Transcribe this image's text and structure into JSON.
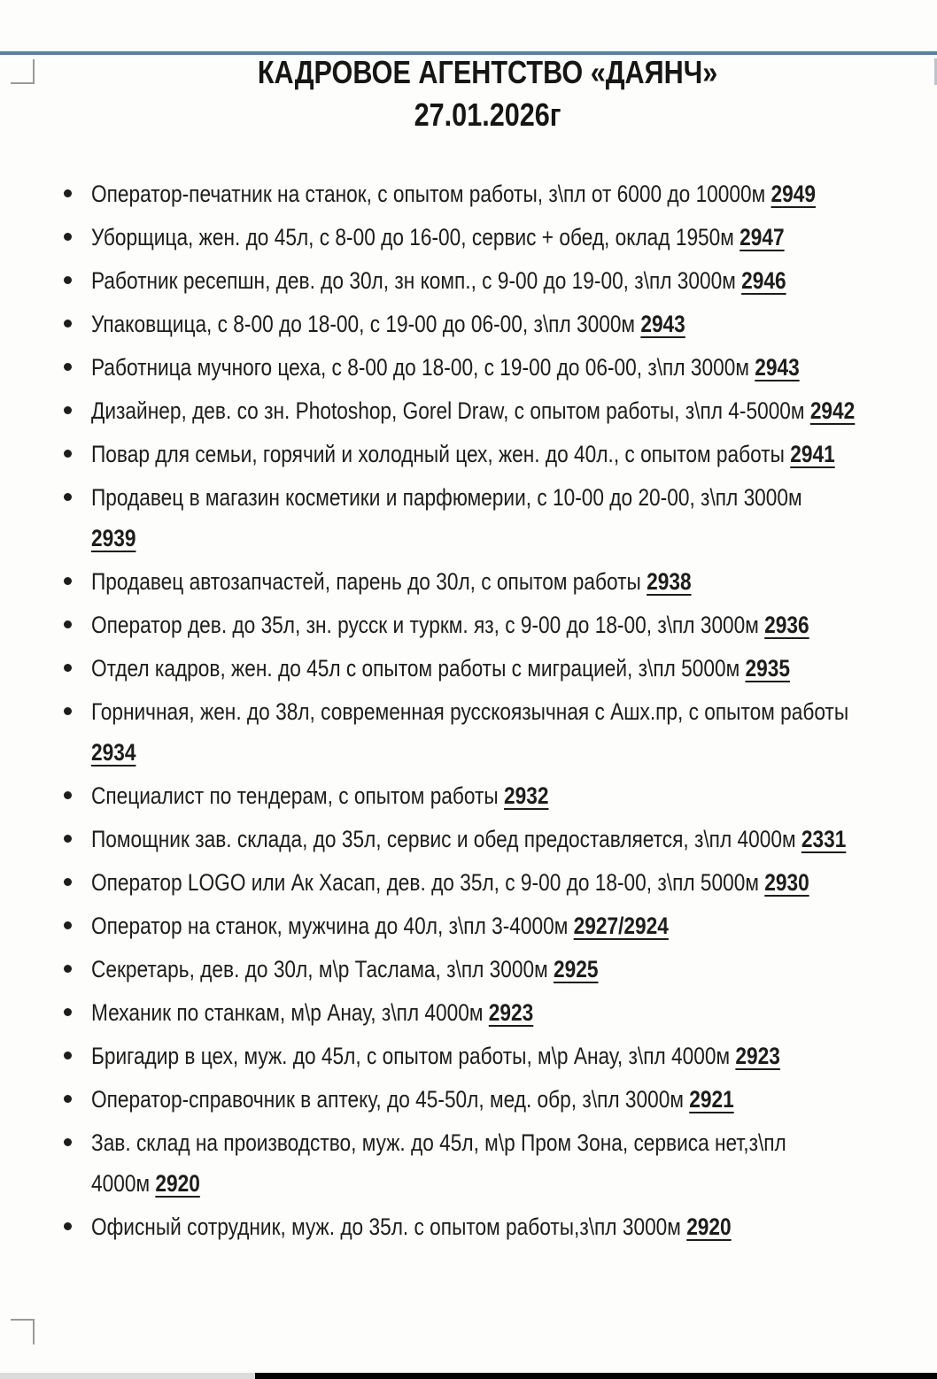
{
  "page": {
    "title": "КАДРОВОЕ АГЕНТСТВО «ДАЯНЧ»",
    "date": "27.01.2026г"
  },
  "colors": {
    "top_bar": "#5181ae",
    "bottom_bar_left": "#dcdcdc",
    "bottom_bar_right": "#050505",
    "text": "#1d1d1d"
  },
  "list": {
    "items": [
      {
        "lines": [
          {
            "text": "Оператор-печатник на станок, с опытом работы, з\\пл от 6000 до 10000м ",
            "num": "2949"
          }
        ]
      },
      {
        "lines": [
          {
            "text": "Уборщица, жен. до 45л, с 8-00 до 16-00, сервис + обед, оклад 1950м ",
            "num": "2947"
          }
        ]
      },
      {
        "lines": [
          {
            "text": "Работник ресепшн, дев. до 30л, зн комп., с 9-00 до 19-00, з\\пл 3000м ",
            "num": "2946"
          }
        ]
      },
      {
        "lines": [
          {
            "text": "Упаковщица, с 8-00 до 18-00, с 19-00 до 06-00, з\\пл 3000м ",
            "num": "2943"
          }
        ]
      },
      {
        "lines": [
          {
            "text": "Работница мучного цеха, с 8-00 до 18-00, с 19-00 до 06-00, з\\пл 3000м ",
            "num": "2943"
          }
        ]
      },
      {
        "lines": [
          {
            "text": "Дизайнер, дев. со зн. Photoshop, Gorel Draw, с опытом работы, з\\пл 4-5000м ",
            "num": "2942"
          }
        ]
      },
      {
        "lines": [
          {
            "text": "Повар для семьи, горячий и холодный цех, жен. до 40л., с опытом работы ",
            "num": "2941"
          }
        ]
      },
      {
        "lines": [
          {
            "text": "Продавец в магазин косметики и парфюмерии, с 10-00 до 20-00, з\\пл 3000м"
          },
          {
            "text": "",
            "num": "2939"
          }
        ]
      },
      {
        "lines": [
          {
            "text": "Продавец автозапчастей, парень до 30л, с опытом работы ",
            "num": "2938"
          }
        ]
      },
      {
        "lines": [
          {
            "text": "Оператор дев. до 35л, зн. русск и туркм. яз, с 9-00 до 18-00, з\\пл 3000м ",
            "num": "2936"
          }
        ]
      },
      {
        "lines": [
          {
            "text": "Отдел кадров, жен. до 45л с опытом работы с миграцией, з\\пл 5000м ",
            "num": "2935"
          }
        ]
      },
      {
        "lines": [
          {
            "text": "Горничная, жен. до 38л, современная русскоязычная с Ашх.пр, с опытом работы"
          },
          {
            "text": "",
            "num": "2934"
          }
        ]
      },
      {
        "lines": [
          {
            "text": "Специалист по тендерам, с опытом работы ",
            "num": "2932"
          }
        ]
      },
      {
        "lines": [
          {
            "text": "Помощник зав. склада, до 35л, сервис и обед предоставляется, з\\пл 4000м ",
            "num": "2331"
          }
        ]
      },
      {
        "lines": [
          {
            "text": "Оператор LOGO или Ак Хасап, дев. до 35л, с 9-00 до 18-00, з\\пл 5000м ",
            "num": "2930"
          }
        ]
      },
      {
        "lines": [
          {
            "text": "Оператор на станок, мужчина до 40л, з\\пл 3-4000м ",
            "num": "2927/2924"
          }
        ]
      },
      {
        "lines": [
          {
            "text": "Секретарь, дев. до 30л, м\\р Таслама, з\\пл 3000м ",
            "num": "2925"
          }
        ]
      },
      {
        "lines": [
          {
            "text": "Механик по станкам, м\\р Анау, з\\пл 4000м ",
            "num": "2923"
          }
        ]
      },
      {
        "lines": [
          {
            "text": "Бригадир в цех, муж. до 45л, с опытом работы, м\\р Анау, з\\пл 4000м ",
            "num": "2923"
          }
        ]
      },
      {
        "lines": [
          {
            "text": "Оператор-справочник в аптеку, до 45-50л, мед. обр, з\\пл 3000м ",
            "num": "2921"
          }
        ]
      },
      {
        "lines": [
          {
            "text": "Зав. склад на производство, муж. до 45л, м\\р Пром Зона, сервиса нет,з\\пл"
          },
          {
            "text": "4000м ",
            "num": "2920"
          }
        ]
      },
      {
        "lines": [
          {
            "text": "Офисный сотрудник, муж. до 35л. с опытом работы,з\\пл 3000м ",
            "num": "2920"
          }
        ]
      }
    ]
  }
}
